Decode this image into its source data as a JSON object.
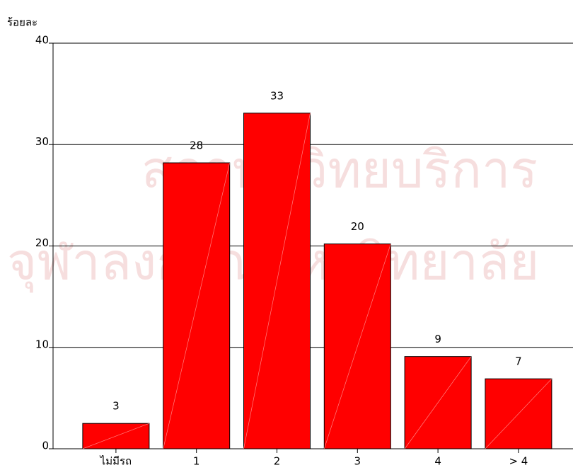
{
  "chart_data": {
    "type": "bar",
    "ylabel": "ร้อยละ",
    "watermark": [
      "สถาบันวิทยบริการ",
      "จุฬาลงกรณ์มหาวิทยาลัย"
    ],
    "categories": [
      "ไม่มีรถ",
      "1",
      "2",
      "3",
      "4",
      "> 4"
    ],
    "values": [
      2.5,
      28.2,
      33.1,
      20.2,
      9.1,
      6.9
    ],
    "value_labels": [
      "3",
      "28",
      "33",
      "20",
      "9",
      "7"
    ],
    "color": "#ff0000",
    "ylim": [
      0,
      40
    ],
    "yticks": [
      0,
      10,
      20,
      30,
      40
    ],
    "grid": true
  }
}
